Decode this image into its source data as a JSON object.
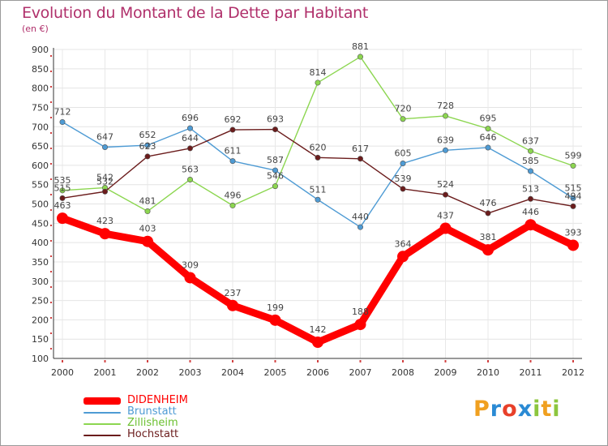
{
  "header": {
    "title": "Evolution du Montant de la Dette par Habitant",
    "unit": "(en €)"
  },
  "logo": {
    "letters": [
      {
        "ch": "P",
        "color": "#f0a020"
      },
      {
        "ch": "r",
        "color": "#2a8ad4"
      },
      {
        "ch": "o",
        "color": "#e8402a"
      },
      {
        "ch": "x",
        "color": "#2a8ad4"
      },
      {
        "ch": "i",
        "color": "#8cc63e"
      },
      {
        "ch": "t",
        "color": "#f0a020"
      },
      {
        "ch": "i",
        "color": "#8cc63e"
      }
    ]
  },
  "chart_data": {
    "type": "line",
    "title": "Evolution du Montant de la Dette par Habitant",
    "ylabel": "(en €)",
    "x": [
      "2000",
      "2001",
      "2002",
      "2003",
      "2004",
      "2005",
      "2006",
      "2007",
      "2008",
      "2009",
      "2010",
      "2011",
      "2012"
    ],
    "ylim": [
      100,
      900
    ],
    "yticks": [
      100,
      150,
      200,
      250,
      300,
      350,
      400,
      450,
      500,
      550,
      600,
      650,
      700,
      750,
      800,
      850,
      900
    ],
    "grid": true,
    "legend_position": "bottom-left",
    "series": [
      {
        "name": "DIDENHEIM",
        "color": "#ff0000",
        "bold": true,
        "values": [
          463,
          423,
          403,
          309,
          237,
          199,
          142,
          188,
          364,
          437,
          381,
          446,
          393
        ]
      },
      {
        "name": "Brunstatt",
        "color": "#4e9bd4",
        "bold": false,
        "values": [
          712,
          647,
          652,
          696,
          611,
          587,
          511,
          440,
          605,
          639,
          646,
          585,
          515
        ]
      },
      {
        "name": "Zillisheim",
        "color": "#8cd650",
        "bold": false,
        "values": [
          535,
          542,
          481,
          563,
          496,
          546,
          814,
          881,
          720,
          728,
          695,
          637,
          599
        ]
      },
      {
        "name": "Hochstatt",
        "color": "#6b1c1c",
        "bold": false,
        "values": [
          515,
          532,
          623,
          644,
          692,
          693,
          620,
          617,
          539,
          524,
          476,
          513,
          494
        ]
      }
    ]
  }
}
